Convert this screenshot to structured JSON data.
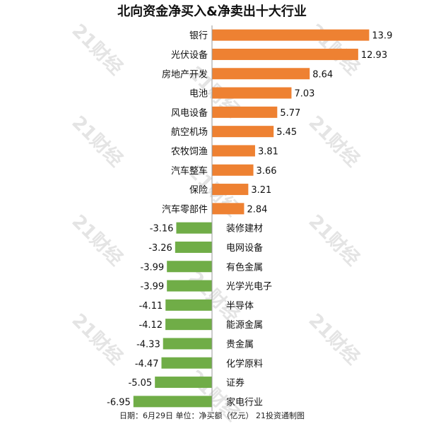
{
  "watermark": "21财经",
  "chart_data": {
    "type": "bar",
    "orientation": "horizontal",
    "title": "北向资金净买入&净卖出十大行业",
    "footer": "日期：6月29日 单位：净买额（亿元） 21投资通制图",
    "colors": {
      "positive": "#ee8132",
      "negative": "#70ad47"
    },
    "categories": [
      "银行",
      "光伏设备",
      "房地产开发",
      "电池",
      "风电设备",
      "航空机场",
      "农牧饲渔",
      "汽车整车",
      "保险",
      "汽车零部件",
      "装修建材",
      "电网设备",
      "有色金属",
      "光学光电子",
      "半导体",
      "能源金属",
      "贵金属",
      "化学原料",
      "证券",
      "家电行业"
    ],
    "values": [
      13.9,
      12.93,
      8.64,
      7.03,
      5.77,
      5.45,
      3.81,
      3.66,
      3.21,
      2.84,
      -3.16,
      -3.26,
      -3.99,
      -3.99,
      -4.11,
      -4.12,
      -4.33,
      -4.47,
      -5.05,
      -6.95
    ],
    "value_labels": [
      "13.9",
      "12.93",
      "8.64",
      "7.03",
      "5.77",
      "5.45",
      "3.81",
      "3.66",
      "3.21",
      "2.84",
      "-3.16",
      "-3.26",
      "-3.99",
      "-3.99",
      "-4.11",
      "-4.12",
      "-4.33",
      "-4.47",
      "-5.05",
      "-6.95"
    ],
    "grid": false,
    "legend": "none"
  }
}
